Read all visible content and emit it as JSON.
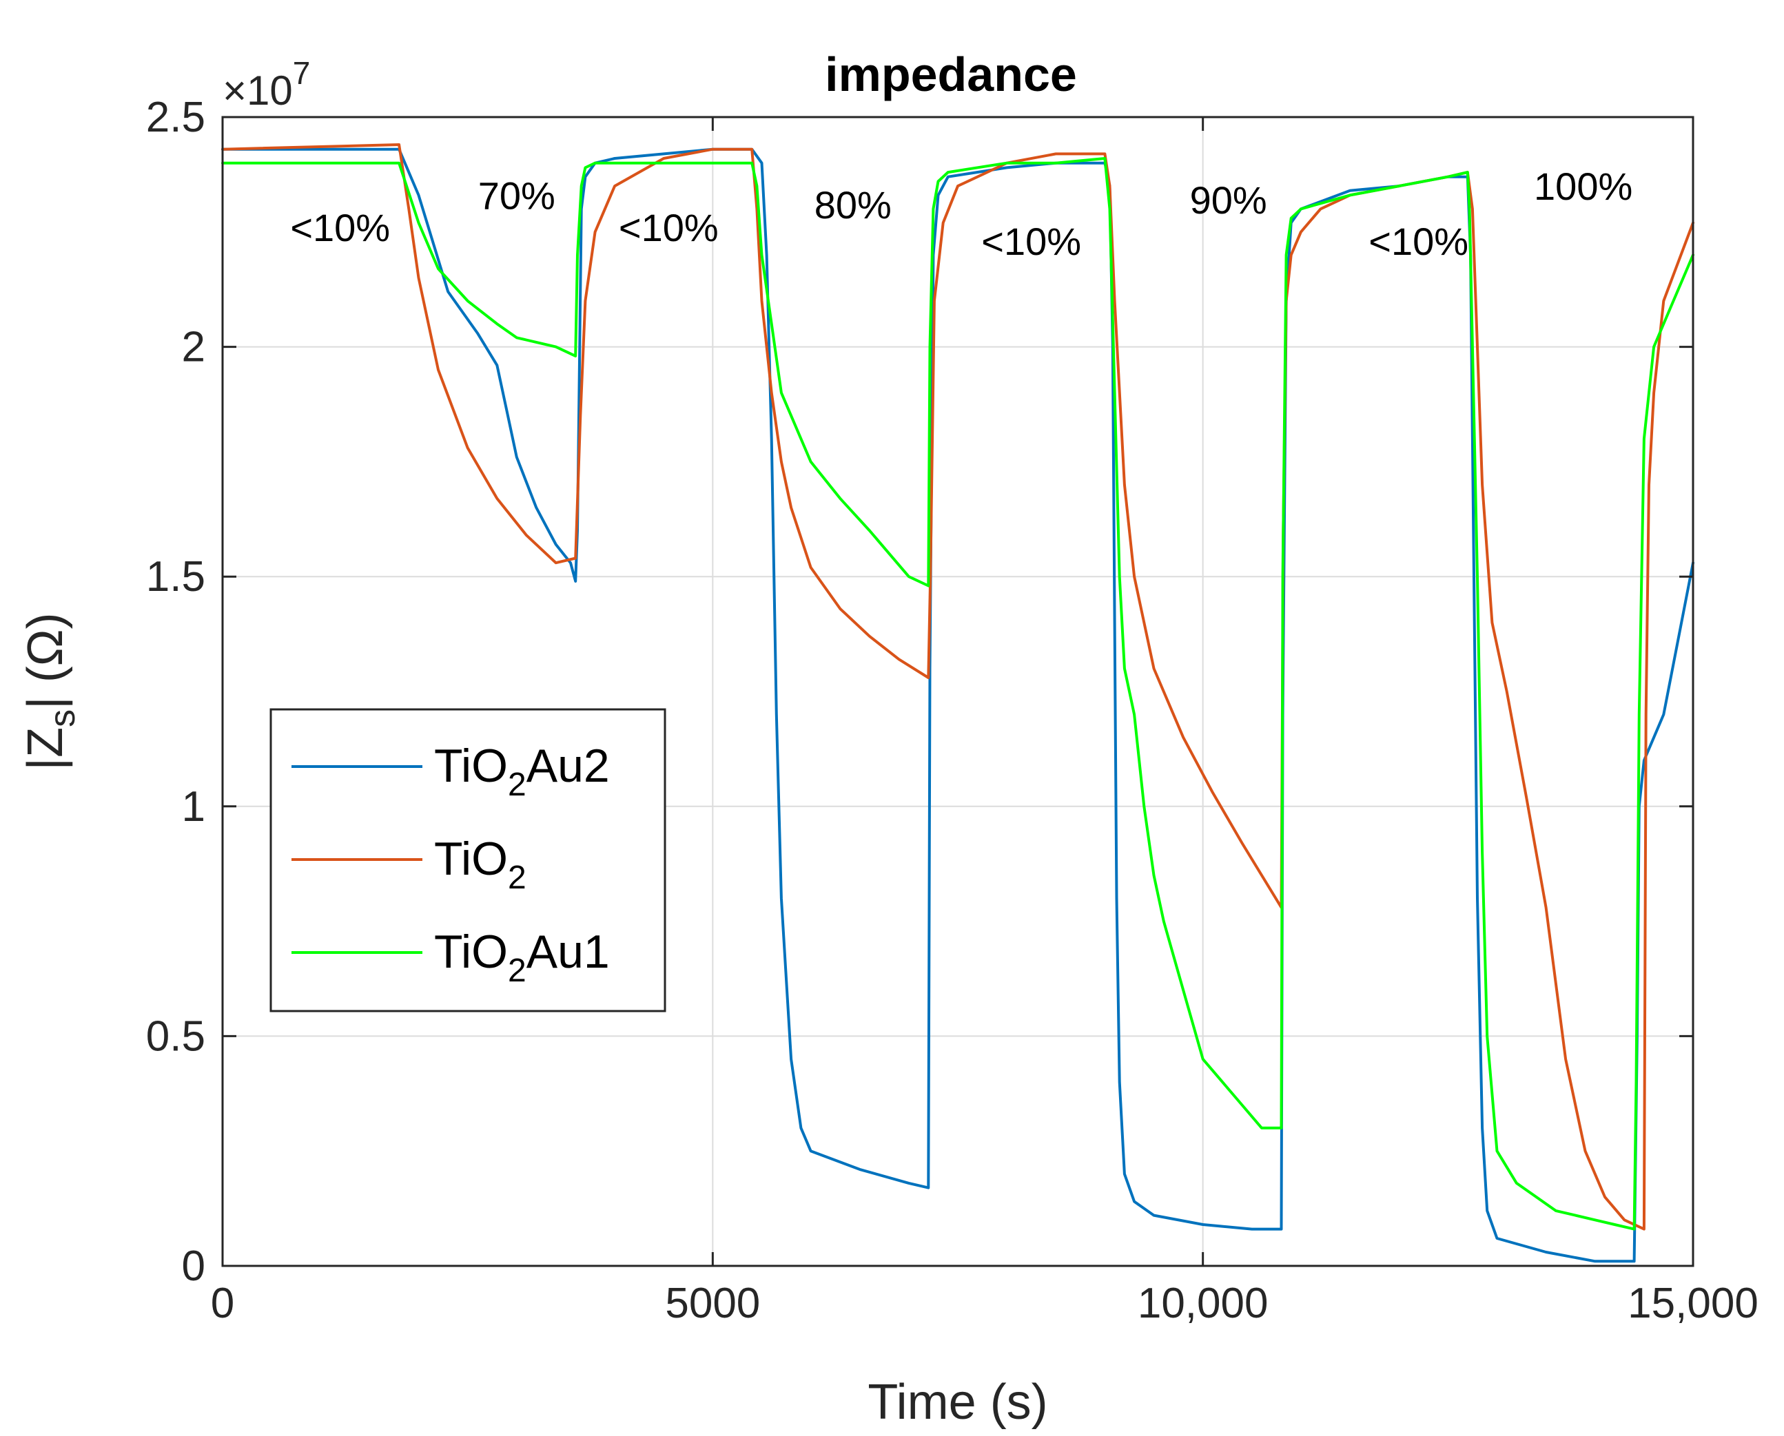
{
  "chart_data": {
    "type": "line",
    "title": "impedance",
    "xlabel": "Time (s)",
    "ylabel_parts": {
      "main": "|Z",
      "sub": "s",
      "rest": "| (Ω)"
    },
    "xlim": [
      0,
      15000
    ],
    "ylim": [
      0,
      2.5
    ],
    "y_exponent_label": "×10",
    "y_exponent_power": "7",
    "grid": true,
    "x_ticks": [
      {
        "value": 0,
        "label": "0"
      },
      {
        "value": 5000,
        "label": "5000"
      },
      {
        "value": 10000,
        "label": "10,000"
      },
      {
        "value": 15000,
        "label": "15,000"
      }
    ],
    "y_ticks": [
      {
        "value": 0,
        "label": "0"
      },
      {
        "value": 0.5,
        "label": "0.5"
      },
      {
        "value": 1,
        "label": "1"
      },
      {
        "value": 1.5,
        "label": "1.5"
      },
      {
        "value": 2,
        "label": "2"
      },
      {
        "value": 2.5,
        "label": "2.5"
      }
    ],
    "annotations": [
      {
        "text": "<10%",
        "x": 1200,
        "y": 2.23
      },
      {
        "text": "70%",
        "x": 3000,
        "y": 2.3
      },
      {
        "text": "<10%",
        "x": 4550,
        "y": 2.23
      },
      {
        "text": "80%",
        "x": 6430,
        "y": 2.28
      },
      {
        "text": "<10%",
        "x": 8250,
        "y": 2.2
      },
      {
        "text": "90%",
        "x": 10260,
        "y": 2.29
      },
      {
        "text": "<10%",
        "x": 12200,
        "y": 2.2
      },
      {
        "text": "100%",
        "x": 13880,
        "y": 2.32
      }
    ],
    "legend_position": "middle-left",
    "series": [
      {
        "name": "TiO2Au2",
        "name_main": "TiO",
        "name_sub": "2",
        "name_rest": "Au2",
        "color": "#0072BD",
        "x": [
          0,
          1800,
          2000,
          2300,
          2600,
          2800,
          2900,
          3000,
          3200,
          3400,
          3550,
          3600,
          3620,
          3660,
          3700,
          3800,
          4000,
          4500,
          5000,
          5400,
          5500,
          5550,
          5600,
          5650,
          5700,
          5800,
          5900,
          6000,
          6500,
          7000,
          7200,
          7215,
          7250,
          7300,
          7400,
          8000,
          8500,
          9000,
          9050,
          9080,
          9100,
          9120,
          9150,
          9200,
          9300,
          9500,
          10000,
          10500,
          10800,
          10815,
          10850,
          10900,
          11000,
          11500,
          12000,
          12500,
          12700,
          12730,
          12760,
          12800,
          12850,
          12900,
          13000,
          13500,
          14000,
          14400,
          14430,
          14450,
          14500,
          14700,
          15000
        ],
        "y": [
          2.43,
          2.43,
          2.33,
          2.12,
          2.03,
          1.96,
          1.86,
          1.76,
          1.65,
          1.57,
          1.53,
          1.49,
          1.6,
          2.3,
          2.37,
          2.4,
          2.41,
          2.42,
          2.43,
          2.43,
          2.4,
          2.2,
          1.8,
          1.2,
          0.8,
          0.45,
          0.3,
          0.25,
          0.21,
          0.18,
          0.17,
          1.3,
          2.2,
          2.33,
          2.37,
          2.39,
          2.4,
          2.4,
          2.35,
          2.0,
          1.4,
          0.8,
          0.4,
          0.2,
          0.14,
          0.11,
          0.09,
          0.08,
          0.08,
          1.2,
          2.1,
          2.27,
          2.3,
          2.34,
          2.35,
          2.37,
          2.37,
          2.2,
          1.6,
          0.8,
          0.3,
          0.12,
          0.06,
          0.03,
          0.01,
          0.01,
          0.5,
          1.0,
          1.1,
          1.2,
          1.53
        ]
      },
      {
        "name": "TiO2",
        "name_main": "TiO",
        "name_sub": "2",
        "name_rest": "",
        "color": "#D95319",
        "x": [
          0,
          1800,
          1900,
          2000,
          2200,
          2500,
          2800,
          3100,
          3400,
          3600,
          3650,
          3700,
          3800,
          4000,
          4500,
          5000,
          5400,
          5450,
          5500,
          5600,
          5700,
          5800,
          6000,
          6300,
          6600,
          6900,
          7200,
          7220,
          7260,
          7350,
          7500,
          7800,
          8000,
          8500,
          9000,
          9050,
          9100,
          9200,
          9300,
          9500,
          9800,
          10100,
          10400,
          10800,
          10820,
          10850,
          10900,
          11000,
          11200,
          11500,
          12000,
          12500,
          12700,
          12750,
          12800,
          12850,
          12950,
          13100,
          13300,
          13500,
          13700,
          13900,
          14100,
          14300,
          14500,
          14520,
          14550,
          14600,
          14700,
          15000
        ],
        "y": [
          2.43,
          2.44,
          2.3,
          2.15,
          1.95,
          1.78,
          1.67,
          1.59,
          1.53,
          1.54,
          1.85,
          2.1,
          2.25,
          2.35,
          2.41,
          2.43,
          2.43,
          2.3,
          2.1,
          1.9,
          1.75,
          1.65,
          1.52,
          1.43,
          1.37,
          1.32,
          1.28,
          1.5,
          2.1,
          2.27,
          2.35,
          2.38,
          2.4,
          2.42,
          2.42,
          2.35,
          2.1,
          1.7,
          1.5,
          1.3,
          1.15,
          1.03,
          0.92,
          0.78,
          1.6,
          2.1,
          2.2,
          2.25,
          2.3,
          2.33,
          2.35,
          2.37,
          2.38,
          2.3,
          2.0,
          1.7,
          1.4,
          1.25,
          1.02,
          0.78,
          0.45,
          0.25,
          0.15,
          0.1,
          0.08,
          1.2,
          1.7,
          1.9,
          2.1,
          2.27
        ]
      },
      {
        "name": "TiO2Au1",
        "name_main": "TiO",
        "name_sub": "2",
        "name_rest": "Au1",
        "color": "#00FF00",
        "x": [
          0,
          1800,
          2000,
          2200,
          2500,
          2800,
          3000,
          3200,
          3400,
          3600,
          3620,
          3660,
          3700,
          3800,
          4000,
          4500,
          5000,
          5400,
          5450,
          5500,
          5600,
          5700,
          6000,
          6300,
          6600,
          6800,
          7000,
          7200,
          7215,
          7250,
          7300,
          7400,
          8000,
          8500,
          9000,
          9050,
          9100,
          9150,
          9200,
          9300,
          9400,
          9500,
          9600,
          9800,
          10000,
          10200,
          10400,
          10600,
          10800,
          10815,
          10850,
          10900,
          11000,
          11500,
          12000,
          12500,
          12700,
          12720,
          12750,
          12800,
          12850,
          12900,
          13000,
          13200,
          13400,
          13600,
          13800,
          14000,
          14200,
          14400,
          14420,
          14450,
          14500,
          14600,
          14800,
          15000
        ],
        "y": [
          2.4,
          2.4,
          2.27,
          2.17,
          2.1,
          2.05,
          2.02,
          2.01,
          2.0,
          1.98,
          2.2,
          2.35,
          2.39,
          2.4,
          2.4,
          2.4,
          2.4,
          2.4,
          2.35,
          2.2,
          2.05,
          1.9,
          1.75,
          1.67,
          1.6,
          1.55,
          1.5,
          1.48,
          2.0,
          2.3,
          2.36,
          2.38,
          2.4,
          2.4,
          2.41,
          2.3,
          1.9,
          1.5,
          1.3,
          1.2,
          1.0,
          0.85,
          0.75,
          0.6,
          0.45,
          0.4,
          0.35,
          0.3,
          0.3,
          1.5,
          2.2,
          2.28,
          2.3,
          2.33,
          2.35,
          2.37,
          2.38,
          2.3,
          2.0,
          1.5,
          0.9,
          0.5,
          0.25,
          0.18,
          0.15,
          0.12,
          0.11,
          0.1,
          0.09,
          0.08,
          0.4,
          1.2,
          1.8,
          2.0,
          2.1,
          2.2
        ]
      }
    ]
  }
}
